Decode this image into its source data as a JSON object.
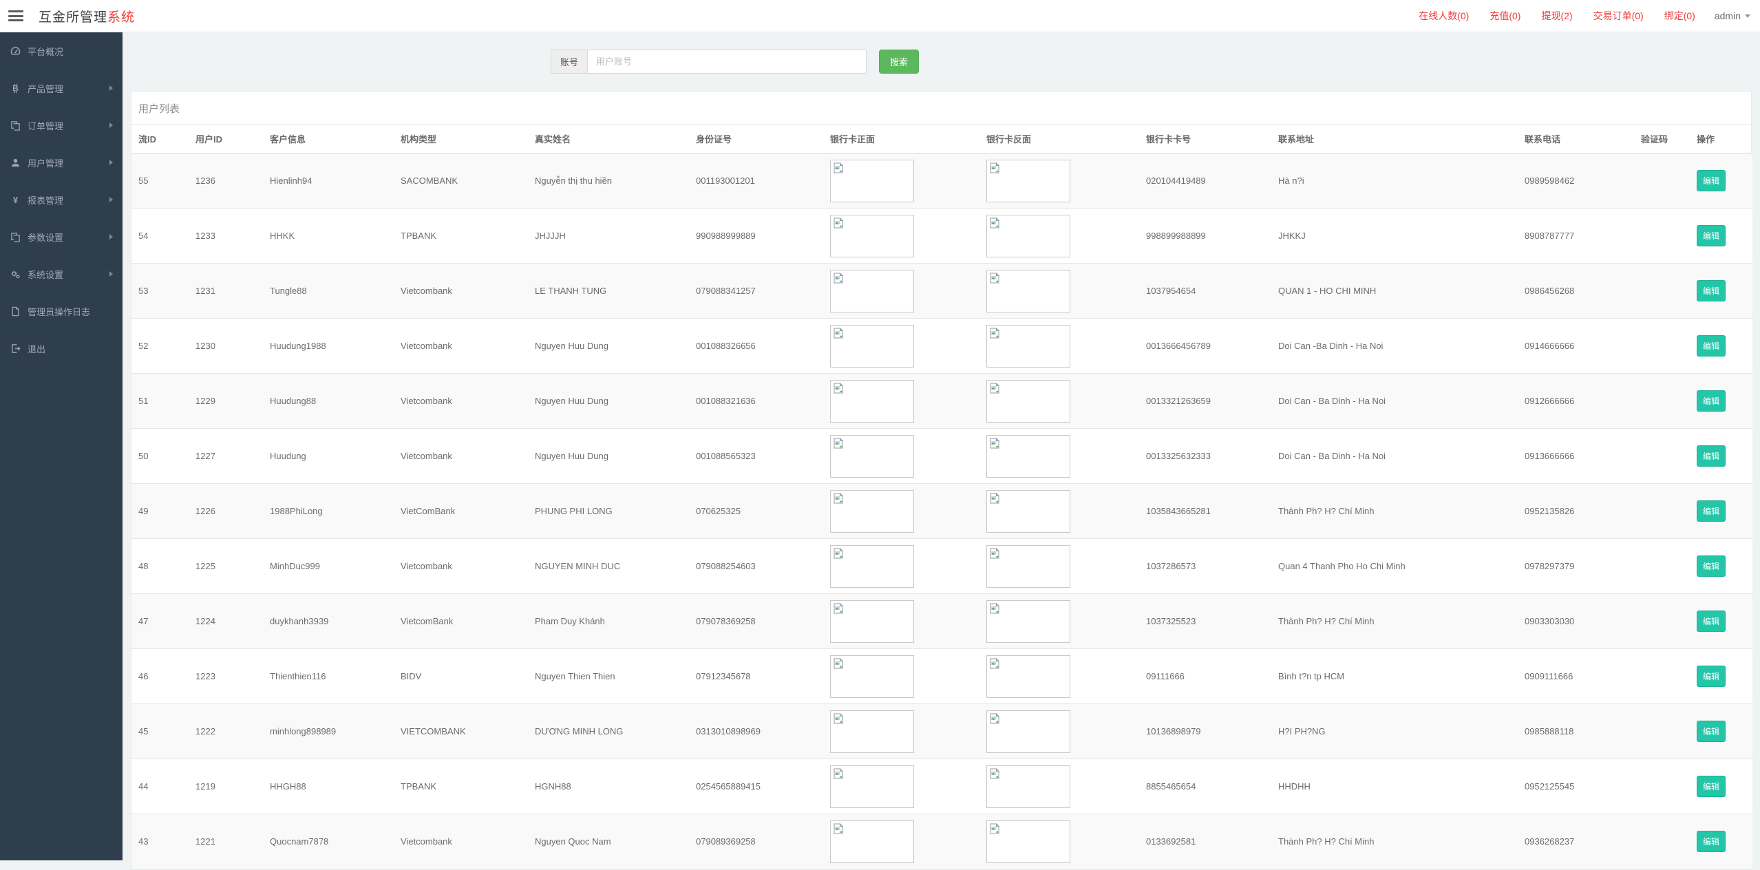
{
  "header": {
    "title_main": "互金所管理",
    "title_accent": "系统",
    "stats": [
      {
        "label": "在线人数(0)"
      },
      {
        "label": "充值(0)"
      },
      {
        "label": "提现(2)"
      },
      {
        "label": "交易订单(0)"
      },
      {
        "label": "绑定(0)"
      }
    ],
    "user": "admin"
  },
  "sidebar": {
    "items": [
      {
        "label": "平台概况",
        "icon": "gauge-icon",
        "has_children": false
      },
      {
        "label": "产品管理",
        "icon": "bitcoin-icon",
        "has_children": true
      },
      {
        "label": "订单管理",
        "icon": "files-icon",
        "has_children": true
      },
      {
        "label": "用户管理",
        "icon": "user-icon",
        "has_children": true
      },
      {
        "label": "报表管理",
        "icon": "yen-icon",
        "has_children": true
      },
      {
        "label": "参数设置",
        "icon": "files-icon",
        "has_children": true
      },
      {
        "label": "系统设置",
        "icon": "gears-icon",
        "has_children": true
      },
      {
        "label": "管理员操作日志",
        "icon": "file-icon",
        "has_children": false
      },
      {
        "label": "退出",
        "icon": "logout-icon",
        "has_children": false
      }
    ]
  },
  "search": {
    "addon": "账号",
    "placeholder": "用户账号",
    "button": "搜索"
  },
  "panel": {
    "title": "用户列表"
  },
  "table": {
    "columns": [
      "流ID",
      "用户ID",
      "客户信息",
      "机构类型",
      "真实姓名",
      "身份证号",
      "银行卡正面",
      "银行卡反面",
      "银行卡卡号",
      "联系地址",
      "联系电话",
      "验证码",
      "操作"
    ],
    "edit_label": "编辑",
    "rows": [
      {
        "id": "55",
        "uid": "1236",
        "customer": "Hienlinh94",
        "bank": "SACOMBANK",
        "name": "Nguyễn thị thu hiền",
        "id_card": "001193001201",
        "card_no": "020104419489",
        "address": "Hà n?i",
        "phone": "0989598462",
        "code": ""
      },
      {
        "id": "54",
        "uid": "1233",
        "customer": "HHKK",
        "bank": "TPBANK",
        "name": "JHJJJH",
        "id_card": "990988999889",
        "card_no": "998899988899",
        "address": "JHKKJ",
        "phone": "8908787777",
        "code": ""
      },
      {
        "id": "53",
        "uid": "1231",
        "customer": "Tungle88",
        "bank": "Vietcombank",
        "name": "LE THANH TUNG",
        "id_card": "079088341257",
        "card_no": "1037954654",
        "address": "QUAN 1 - HO CHI MINH",
        "phone": "0986456268",
        "code": ""
      },
      {
        "id": "52",
        "uid": "1230",
        "customer": "Huudung1988",
        "bank": "Vietcombank",
        "name": "Nguyen Huu Dung",
        "id_card": "001088326656",
        "card_no": "0013666456789",
        "address": "Doi Can -Ba Dinh - Ha Noi",
        "phone": "0914666666",
        "code": ""
      },
      {
        "id": "51",
        "uid": "1229",
        "customer": "Huudung88",
        "bank": "Vietcombank",
        "name": "Nguyen Huu Dung",
        "id_card": "001088321636",
        "card_no": "0013321263659",
        "address": "Doi Can - Ba Dinh - Ha Noi",
        "phone": "0912666666",
        "code": ""
      },
      {
        "id": "50",
        "uid": "1227",
        "customer": "Huudung",
        "bank": "Vietcombank",
        "name": "Nguyen Huu Dung",
        "id_card": "001088565323",
        "card_no": "0013325632333",
        "address": "Doi Can - Ba Dinh - Ha Noi",
        "phone": "0913666666",
        "code": ""
      },
      {
        "id": "49",
        "uid": "1226",
        "customer": "1988PhiLong",
        "bank": "VietComBank",
        "name": "PHUNG PHI LONG",
        "id_card": "070625325",
        "card_no": "1035843665281",
        "address": "Thành Ph? H? Chí Minh",
        "phone": "0952135826",
        "code": ""
      },
      {
        "id": "48",
        "uid": "1225",
        "customer": "MinhDuc999",
        "bank": "Vietcombank",
        "name": "NGUYEN MINH DUC",
        "id_card": "079088254603",
        "card_no": "1037286573",
        "address": "Quan 4 Thanh Pho Ho Chi Minh",
        "phone": "0978297379",
        "code": ""
      },
      {
        "id": "47",
        "uid": "1224",
        "customer": "duykhanh3939",
        "bank": "VietcomBank",
        "name": "Pham Duy Khánh",
        "id_card": "079078369258",
        "card_no": "1037325523",
        "address": "Thành Ph? H? Chí Minh",
        "phone": "0903303030",
        "code": ""
      },
      {
        "id": "46",
        "uid": "1223",
        "customer": "Thienthien116",
        "bank": "BIDV",
        "name": "Nguyen Thien Thien",
        "id_card": "07912345678",
        "card_no": "09111666",
        "address": "Bình t?n tp HCM",
        "phone": "0909111666",
        "code": ""
      },
      {
        "id": "45",
        "uid": "1222",
        "customer": "minhlong898989",
        "bank": "VIETCOMBANK",
        "name": "DƯƠNG MINH LONG",
        "id_card": "0313010898969",
        "card_no": "10136898979",
        "address": "H?I PH?NG",
        "phone": "0985888118",
        "code": ""
      },
      {
        "id": "44",
        "uid": "1219",
        "customer": "HHGH88",
        "bank": "TPBANK",
        "name": "HGNH88",
        "id_card": "0254565889415",
        "card_no": "8855465654",
        "address": "HHDHH",
        "phone": "0952125545",
        "code": ""
      },
      {
        "id": "43",
        "uid": "1221",
        "customer": "Quocnam7878",
        "bank": "Vietcombank",
        "name": "Nguyen Quoc Nam",
        "id_card": "079089369258",
        "card_no": "0133692581",
        "address": "Thành Ph? H? Chí Minh",
        "phone": "0936268237",
        "code": ""
      }
    ]
  },
  "colors": {
    "accent_red": "#ef3b3b",
    "sidebar_bg": "#2f3e4d",
    "edit_button": "#23c6a8",
    "search_button": "#5cb85c"
  }
}
